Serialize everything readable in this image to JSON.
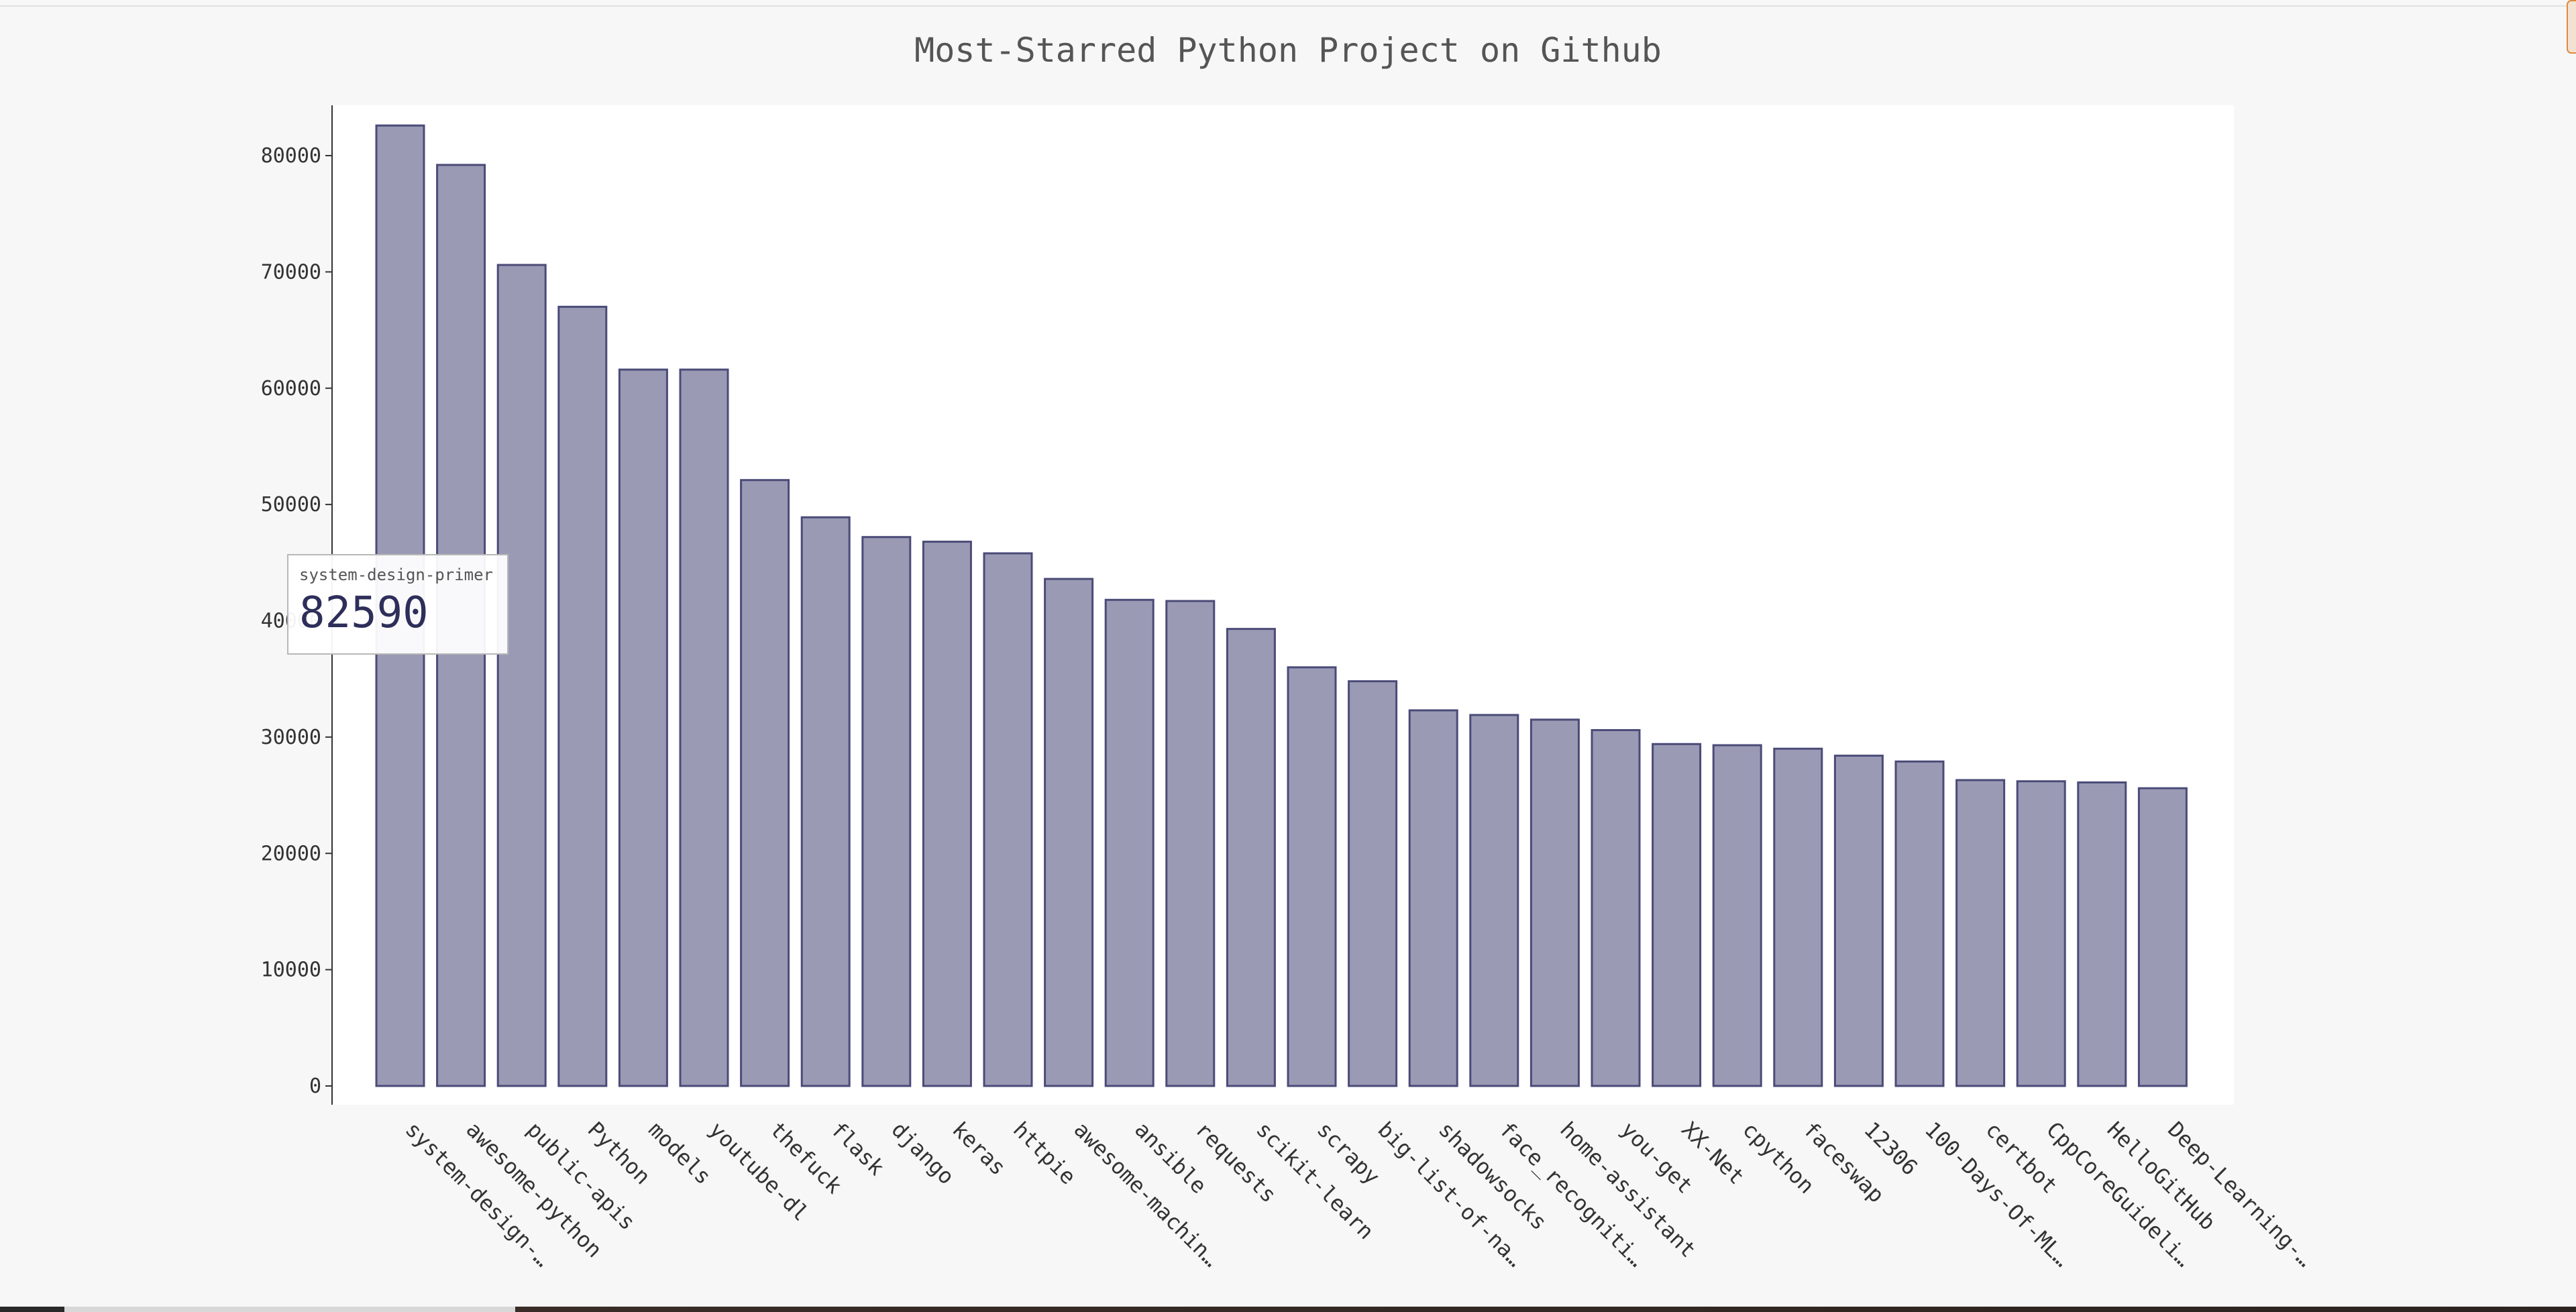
{
  "chart_data": {
    "type": "bar",
    "title": "Most-Starred Python Project on Github",
    "xlabel": "",
    "ylabel": "",
    "ylim": [
      0,
      85000
    ],
    "yticks": [
      0,
      10000,
      20000,
      30000,
      40000,
      50000,
      60000,
      70000,
      80000
    ],
    "ytick_labels": [
      "0",
      "10000",
      "20000",
      "30000",
      "40000",
      "50000",
      "60000",
      "70000",
      "80000"
    ],
    "grid": false,
    "legend": "none",
    "categories": [
      "system-design-…",
      "awesome-python",
      "public-apis",
      "Python",
      "models",
      "youtube-dl",
      "thefuck",
      "flask",
      "django",
      "keras",
      "httpie",
      "awesome-machin…",
      "ansible",
      "requests",
      "scikit-learn",
      "scrapy",
      "big-list-of-na…",
      "shadowsocks",
      "face_recogniti…",
      "home-assistant",
      "you-get",
      "XX-Net",
      "cpython",
      "faceswap",
      "12306",
      "100-Days-Of-ML…",
      "certbot",
      "CppCoreGuideli…",
      "HelloGitHub",
      "Deep-Learning-…"
    ],
    "values": [
      82590,
      79200,
      70600,
      67000,
      61600,
      61600,
      52100,
      48900,
      47200,
      46800,
      45800,
      43600,
      41800,
      41700,
      39300,
      36000,
      34800,
      32300,
      31900,
      31500,
      30600,
      29400,
      29300,
      29000,
      28400,
      27900,
      26300,
      26200,
      26100,
      25600
    ],
    "tooltip": {
      "label": "system-design-primer",
      "value": "82590"
    }
  },
  "colors": {
    "bar_fill": "#9a9ab5",
    "bar_stroke": "#4b4b78",
    "background": "#f7f7f7",
    "plot_background": "#ffffff"
  }
}
